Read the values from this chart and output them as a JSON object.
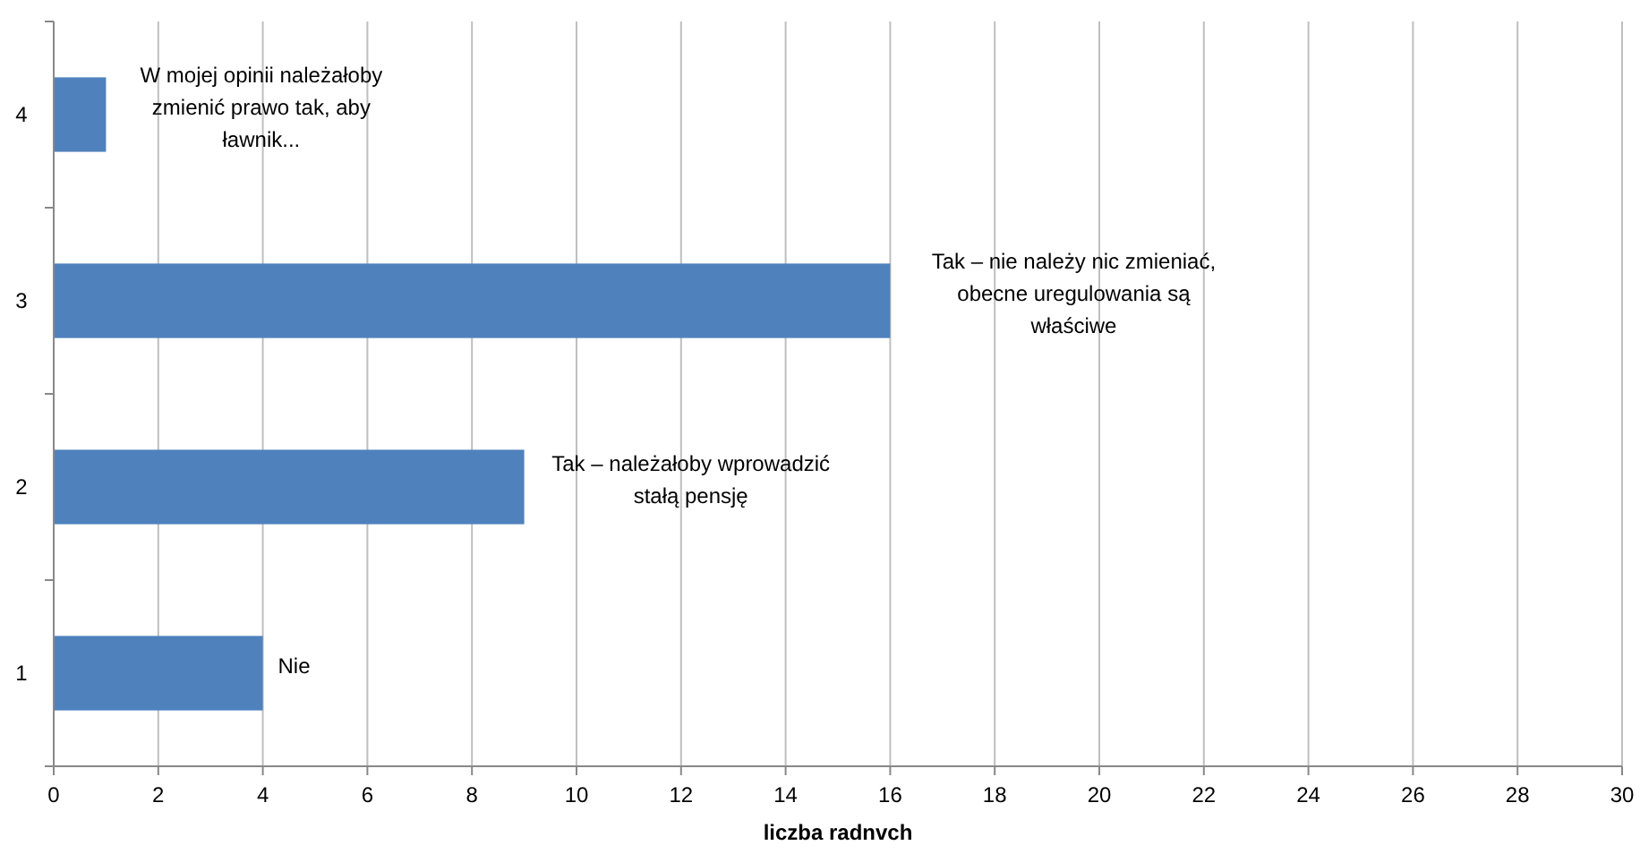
{
  "chart_data": {
    "type": "bar",
    "orientation": "horizontal",
    "categories": [
      "4",
      "3",
      "2",
      "1"
    ],
    "values": [
      1,
      16,
      9,
      4
    ],
    "color": "#4f81bd",
    "xlabel": "liczba radnvch",
    "xlim": [
      0,
      30
    ],
    "xticks": [
      0,
      2,
      4,
      6,
      8,
      10,
      12,
      14,
      16,
      18,
      20,
      22,
      24,
      26,
      28,
      30
    ],
    "grid": "x",
    "annotations": [
      {
        "text": "W mojej opinii należałoby zmienić prawo tak, aby ławnik...",
        "x": 1,
        "y": "4"
      },
      {
        "text": "Tak – nie należy nic zmieniać, obecne uregulowania są właściwe",
        "x": 16,
        "y": "3"
      },
      {
        "text": "Tak – należałoby wprowadzić stałą pensję",
        "x": 9,
        "y": "2"
      },
      {
        "text": "Nie",
        "x": 4,
        "y": "1"
      }
    ]
  }
}
